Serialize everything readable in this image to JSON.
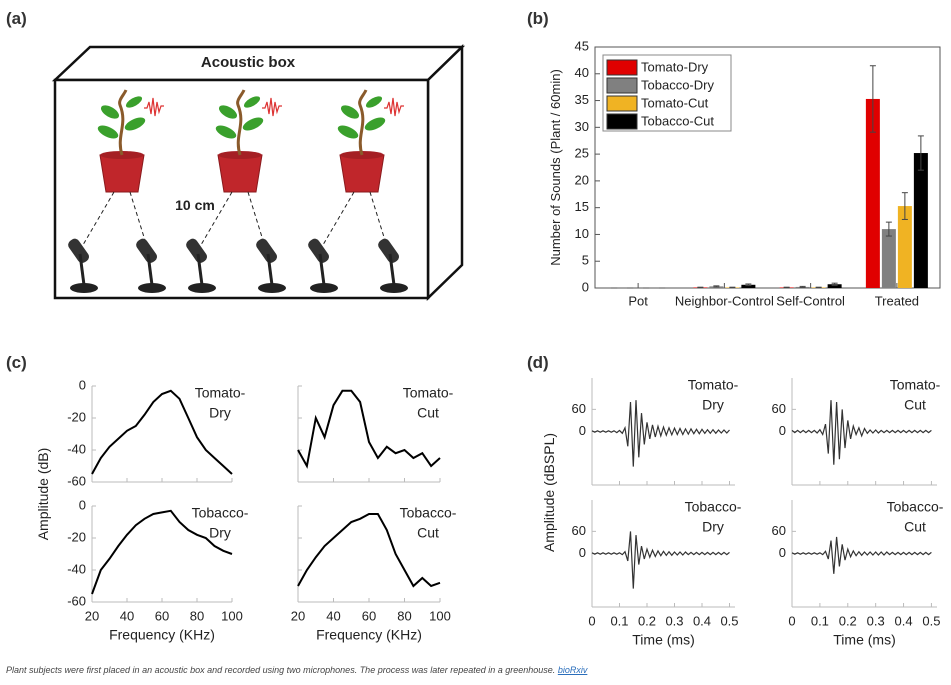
{
  "diagram": {
    "panel": "(a)",
    "title": "Acoustic box",
    "distance": "10 cm"
  },
  "chart_data": [
    {
      "type": "bar",
      "panel": "(b)",
      "ylabel": "Number of Sounds (Plant / 60min)",
      "categories": [
        "Pot",
        "Neighbor-Control",
        "Self-Control",
        "Treated"
      ],
      "ylim": [
        0,
        45
      ],
      "yticks": [
        0,
        5,
        10,
        15,
        20,
        25,
        30,
        35,
        40,
        45
      ],
      "legend": "top-left",
      "series": [
        {
          "name": "Tomato-Dry",
          "color": "#e00000",
          "values": [
            0,
            0.1,
            0.1,
            35.3
          ],
          "errors": [
            0,
            0.05,
            0.05,
            6.2
          ]
        },
        {
          "name": "Tobacco-Dry",
          "color": "#808080",
          "values": [
            0,
            0.3,
            0.2,
            11
          ],
          "errors": [
            0,
            0.1,
            0.1,
            1.3
          ]
        },
        {
          "name": "Tomato-Cut",
          "color": "#f0b323",
          "values": [
            0,
            0.1,
            0.1,
            15.3
          ],
          "errors": [
            0,
            0.05,
            0.05,
            2.5
          ]
        },
        {
          "name": "Tobacco-Cut",
          "color": "#000000",
          "values": [
            0,
            0.6,
            0.7,
            25.2
          ],
          "errors": [
            0,
            0.15,
            0.2,
            3.2
          ]
        }
      ]
    },
    {
      "type": "line",
      "panel": "(c)",
      "ylabel": "Amplitude (dB)",
      "xlabel": "Frequency (KHz)",
      "shared_y": true,
      "xlim": [
        20,
        100
      ],
      "xticks": [
        20,
        40,
        60,
        80,
        100
      ],
      "ylim": [
        -60,
        0
      ],
      "yticks": [
        0,
        -20,
        -40,
        -60
      ],
      "x": [
        20,
        25,
        30,
        35,
        40,
        45,
        50,
        55,
        60,
        65,
        70,
        75,
        80,
        85,
        90,
        95,
        100
      ],
      "plots": [
        {
          "label": [
            "Tomato-",
            "Dry"
          ],
          "color": "#000000",
          "values": [
            -55,
            -45,
            -38,
            -33,
            -28,
            -25,
            -18,
            -10,
            -5,
            -3,
            -8,
            -20,
            -32,
            -40,
            -45,
            -50,
            -55
          ]
        },
        {
          "label": [
            "Tomato-",
            "Cut"
          ],
          "color": "#000000",
          "values": [
            -40,
            -50,
            -20,
            -32,
            -12,
            -3,
            -3,
            -10,
            -35,
            -45,
            -38,
            -42,
            -40,
            -45,
            -42,
            -50,
            -45
          ]
        },
        {
          "label": [
            "Tobacco-",
            "Dry"
          ],
          "color": "#000000",
          "values": [
            -55,
            -40,
            -33,
            -25,
            -18,
            -12,
            -8,
            -5,
            -4,
            -3,
            -10,
            -15,
            -18,
            -20,
            -25,
            -28,
            -30
          ]
        },
        {
          "label": [
            "Tobacco-",
            "Cut"
          ],
          "color": "#000000",
          "values": [
            -50,
            -40,
            -32,
            -25,
            -20,
            -15,
            -10,
            -8,
            -5,
            -5,
            -15,
            -30,
            -40,
            -50,
            -45,
            -50,
            -48
          ]
        }
      ]
    },
    {
      "type": "line",
      "panel": "(d)",
      "ylabel": "Amplitude (dBSPL)",
      "xlabel": "Time (ms)",
      "shared_y": false,
      "xlim": [
        0,
        0.52
      ],
      "xticks": [
        0,
        0.1,
        0.2,
        0.3,
        0.4,
        0.5
      ],
      "ylim": [
        -145,
        145
      ],
      "yticks": [
        0,
        60
      ],
      "x": [
        0,
        0.01,
        0.02,
        0.03,
        0.04,
        0.05,
        0.06,
        0.07,
        0.08,
        0.09,
        0.1,
        0.11,
        0.12,
        0.13,
        0.14,
        0.15,
        0.16,
        0.17,
        0.18,
        0.19,
        0.2,
        0.21,
        0.22,
        0.23,
        0.24,
        0.25,
        0.26,
        0.27,
        0.28,
        0.29,
        0.3,
        0.31,
        0.32,
        0.33,
        0.34,
        0.35,
        0.36,
        0.37,
        0.38,
        0.39,
        0.4,
        0.41,
        0.42,
        0.43,
        0.44,
        0.45,
        0.46,
        0.47,
        0.48,
        0.49,
        0.5
      ],
      "plots": [
        {
          "label": [
            "Tomato-",
            "Dry"
          ],
          "color": "#333333",
          "values": [
            2,
            -2,
            2,
            -2,
            2,
            -2,
            2,
            -2,
            2,
            -3,
            3,
            -5,
            10,
            -40,
            80,
            -95,
            85,
            -70,
            50,
            -35,
            25,
            -20,
            18,
            -15,
            14,
            -12,
            12,
            -10,
            10,
            -9,
            9,
            -8,
            8,
            -8,
            7,
            -7,
            7,
            -6,
            6,
            -6,
            6,
            -5,
            5,
            -5,
            5,
            -5,
            4,
            -4,
            4,
            -4,
            4
          ]
        },
        {
          "label": [
            "Tomato-",
            "Cut"
          ],
          "color": "#333333",
          "values": [
            3,
            -3,
            3,
            -3,
            3,
            -3,
            3,
            -3,
            3,
            -4,
            5,
            -8,
            20,
            -60,
            85,
            -90,
            80,
            -75,
            60,
            -45,
            30,
            -20,
            15,
            -8,
            10,
            -12,
            8,
            -5,
            4,
            -4,
            4,
            -4,
            3,
            -3,
            3,
            -3,
            3,
            -3,
            3,
            -3,
            3,
            -3,
            3,
            -3,
            3,
            -3,
            3,
            -3,
            3,
            -3,
            3
          ]
        },
        {
          "label": [
            "Tobacco-",
            "Dry"
          ],
          "color": "#333333",
          "values": [
            2,
            -2,
            2,
            -2,
            2,
            -2,
            2,
            -2,
            2,
            -2,
            2,
            -3,
            5,
            -20,
            60,
            -95,
            50,
            -30,
            20,
            -15,
            12,
            -10,
            9,
            -8,
            7,
            -6,
            6,
            -5,
            5,
            -5,
            4,
            -4,
            4,
            -4,
            4,
            -3,
            3,
            -3,
            3,
            -3,
            3,
            -3,
            3,
            -3,
            3,
            -3,
            3,
            -3,
            3,
            -3,
            3
          ]
        },
        {
          "label": [
            "Tobacco-",
            "Cut"
          ],
          "color": "#333333",
          "values": [
            2,
            -2,
            2,
            -2,
            2,
            -2,
            2,
            -2,
            2,
            -2,
            2,
            -3,
            6,
            -15,
            35,
            -55,
            45,
            -35,
            25,
            -18,
            12,
            -9,
            7,
            -6,
            5,
            -5,
            4,
            -4,
            4,
            -4,
            4,
            -4,
            4,
            -4,
            4,
            -3,
            3,
            -3,
            3,
            -3,
            3,
            -3,
            3,
            -3,
            3,
            -3,
            3,
            -3,
            3,
            -3,
            3
          ]
        }
      ]
    }
  ],
  "caption": {
    "text": "Plant subjects were first placed in an acoustic box and recorded using two microphones. The process was later repeated in a greenhouse.",
    "link": "bioRxiv"
  }
}
